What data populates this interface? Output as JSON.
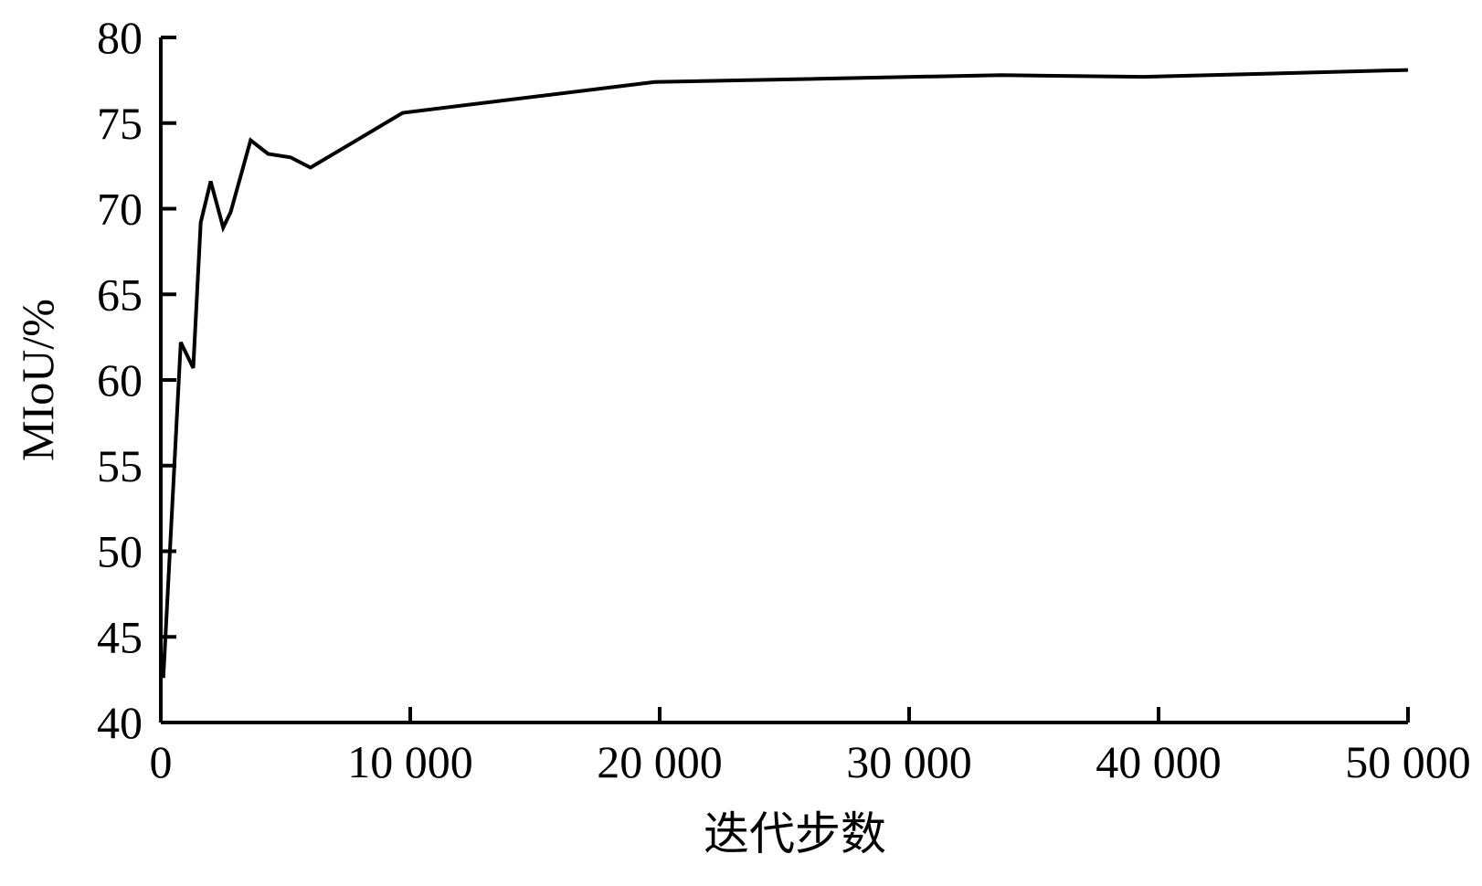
{
  "chart_data": {
    "type": "line",
    "xlabel": "迭代步数",
    "ylabel": "MIoU/%",
    "x": [
      100,
      800,
      1300,
      1600,
      2000,
      2500,
      2800,
      3600,
      4300,
      5200,
      6000,
      9700,
      19800,
      33700,
      39400,
      50000
    ],
    "series": [
      {
        "name": "MIoU",
        "color": "#000000",
        "values": [
          42.6,
          62.2,
          60.7,
          69.2,
          71.6,
          68.9,
          69.8,
          74.0,
          73.2,
          73.0,
          72.4,
          75.6,
          77.4,
          77.8,
          77.7,
          78.1
        ]
      }
    ],
    "xlim": [
      0,
      50000
    ],
    "xticks": [
      0,
      {
        "value": 10000,
        "label": "10 000"
      },
      {
        "value": 20000,
        "label": "20 000"
      },
      {
        "value": 30000,
        "label": "30 000"
      },
      {
        "value": 40000,
        "label": "40 000"
      },
      {
        "value": 50000,
        "label": "50 000"
      }
    ],
    "ylim": [
      40,
      80
    ],
    "yticks": [
      40,
      45,
      50,
      55,
      60,
      65,
      70,
      75,
      80
    ],
    "grid": false
  }
}
